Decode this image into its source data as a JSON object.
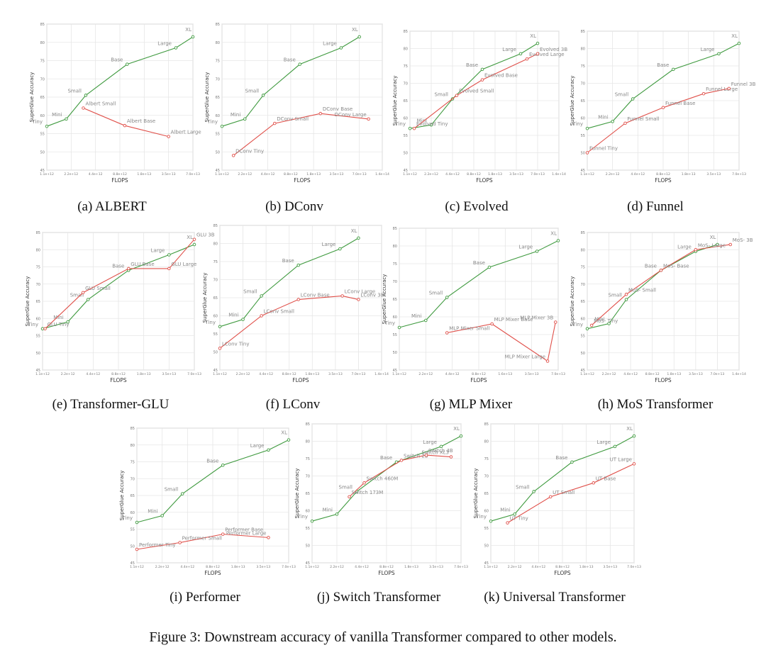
{
  "figure_caption": "Figure 3: Downstream accuracy of vanilla Transformer compared to other models.",
  "colors": {
    "baseline": "#3f9a3f",
    "compare": "#e0504a",
    "grid": "#e6e6e6",
    "axis": "#9a9a9a",
    "text": "#777777"
  },
  "chart_data": [
    {
      "type": "line",
      "caption": "(a) ALBERT",
      "xlabel": "FLOPS",
      "ylabel": "SuperGlue Accuracy",
      "ylim": [
        45,
        85
      ],
      "yticks": [
        "45",
        "50",
        "55",
        "60",
        "65",
        "70",
        "75",
        "80",
        "85"
      ],
      "xticks": [
        "1.1e+12",
        "2.2e+12",
        "4.4e+12",
        "8.8e+12",
        "1.8e+13",
        "3.5e+13",
        "7.0e+13"
      ],
      "series": [
        {
          "name": "Vanilla Transformer",
          "x": [
            0,
            0.8,
            1.6,
            3.3,
            5.3,
            6.0
          ],
          "y": [
            57.0,
            59.0,
            65.5,
            74.0,
            78.5,
            81.5
          ],
          "labels": [
            "Tiny",
            "Mini",
            "Small",
            "Base",
            "Large",
            "XL"
          ]
        },
        {
          "name": "ALBERT",
          "x": [
            1.5,
            3.2,
            5.0
          ],
          "y": [
            62.0,
            57.2,
            54.2
          ],
          "labels": [
            "Albert Small",
            "Albert Base",
            "Albert Large"
          ]
        }
      ]
    },
    {
      "type": "line",
      "caption": "(b) DConv",
      "xlabel": "FLOPS",
      "ylabel": "SuperGlue Accuracy",
      "ylim": [
        45,
        85
      ],
      "yticks": [
        "45",
        "50",
        "55",
        "60",
        "65",
        "70",
        "75",
        "80",
        "85"
      ],
      "xticks": [
        "1.1e+12",
        "2.2e+12",
        "4.4e+12",
        "8.8e+12",
        "1.8e+13",
        "3.5e+13",
        "7.0e+13",
        "1.4e+14"
      ],
      "series": [
        {
          "name": "Vanilla Transformer",
          "x": [
            0,
            1.0,
            1.8,
            3.4,
            5.2,
            6.0
          ],
          "y": [
            57.0,
            59.0,
            65.5,
            74.0,
            78.5,
            81.5
          ],
          "labels": [
            "Tiny",
            "Mini",
            "Small",
            "Base",
            "Large",
            "XL"
          ]
        },
        {
          "name": "DConv",
          "x": [
            0.5,
            2.3,
            4.3,
            6.4
          ],
          "y": [
            49.0,
            57.8,
            60.5,
            59.0
          ],
          "labels": [
            "DConv Tiny",
            "DConv Small",
            "DConv Base",
            "DConv Large"
          ]
        }
      ]
    },
    {
      "type": "line",
      "caption": "(c) Evolved",
      "xlabel": "FLOPS",
      "ylabel": "SuperGlue Accuracy",
      "ylim": [
        45,
        85
      ],
      "yticks": [
        "45",
        "50",
        "55",
        "60",
        "65",
        "70",
        "75",
        "80",
        "85"
      ],
      "xticks": [
        "1.1e+12",
        "2.2e+12",
        "4.4e+12",
        "8.8e+12",
        "1.8e+13",
        "3.5e+13",
        "7.0e+13",
        "1.4e+14"
      ],
      "series": [
        {
          "name": "Vanilla Transformer",
          "x": [
            0,
            1.0,
            2.0,
            3.4,
            5.2,
            6.0
          ],
          "y": [
            57.0,
            58.0,
            65.5,
            74.0,
            78.5,
            81.5
          ],
          "labels": [
            "Tiny",
            "Mini",
            "Small",
            "Base",
            "Large",
            "XL"
          ]
        },
        {
          "name": "Evolved",
          "x": [
            0.2,
            2.2,
            3.4,
            5.5,
            6.0
          ],
          "y": [
            57.0,
            66.5,
            71.0,
            77.0,
            78.5
          ],
          "labels": [
            "Evolved Tiny",
            "Evolved Small",
            "Evolved Base",
            "Evolved Large",
            "Evolved 3B"
          ]
        }
      ]
    },
    {
      "type": "line",
      "caption": "(d) Funnel",
      "xlabel": "FLOPS",
      "ylabel": "SuperGlue Accuracy",
      "ylim": [
        45,
        85
      ],
      "yticks": [
        "45",
        "50",
        "55",
        "60",
        "65",
        "70",
        "75",
        "80",
        "85"
      ],
      "xticks": [
        "1.1e+12",
        "2.2e+12",
        "4.4e+12",
        "8.8e+12",
        "1.8e+13",
        "3.5e+13",
        "7.0e+13"
      ],
      "series": [
        {
          "name": "Vanilla Transformer",
          "x": [
            0,
            1.0,
            1.8,
            3.4,
            5.2,
            6.0
          ],
          "y": [
            57.0,
            59.0,
            65.5,
            74.0,
            78.5,
            81.5
          ],
          "labels": [
            "Tiny",
            "Mini",
            "Small",
            "Base",
            "Large",
            "XL"
          ]
        },
        {
          "name": "Funnel",
          "x": [
            0,
            1.5,
            3.0,
            4.6,
            5.6
          ],
          "y": [
            50.0,
            58.5,
            63.0,
            67.0,
            68.5
          ],
          "labels": [
            "Funnel Tiny",
            "Funnel Small",
            "Funnel Base",
            "Funnel Large",
            "Funnel 3B"
          ]
        }
      ]
    },
    {
      "type": "line",
      "caption": "(e) Transformer-GLU",
      "xlabel": "FLOPS",
      "ylabel": "SuperGlue Accuracy",
      "ylim": [
        45,
        85
      ],
      "yticks": [
        "45",
        "50",
        "55",
        "60",
        "65",
        "70",
        "75",
        "80",
        "85"
      ],
      "xticks": [
        "1.1e+12",
        "2.2e+12",
        "4.4e+12",
        "8.8e+12",
        "1.8e+13",
        "3.5e+13",
        "7.0e+13"
      ],
      "series": [
        {
          "name": "Vanilla Transformer",
          "x": [
            0,
            1.0,
            1.8,
            3.4,
            5.0,
            6.0
          ],
          "y": [
            57.0,
            59.0,
            65.5,
            74.0,
            78.5,
            81.5
          ],
          "labels": [
            "Tiny",
            "Mini",
            "Small",
            "Base",
            "Large",
            "XL"
          ]
        },
        {
          "name": "Transformer-GLU",
          "x": [
            0.1,
            1.6,
            3.4,
            5.0,
            6.0
          ],
          "y": [
            57.0,
            67.5,
            74.5,
            74.5,
            83.0
          ],
          "labels": [
            "GLU Tiny",
            "GLU Small",
            "GLU Base",
            "GLU Large",
            "GLU 3B"
          ]
        }
      ]
    },
    {
      "type": "line",
      "caption": "(f) LConv",
      "xlabel": "FLOPS",
      "ylabel": "SuperGlue Accuracy",
      "ylim": [
        45,
        85
      ],
      "yticks": [
        "45",
        "50",
        "55",
        "60",
        "65",
        "70",
        "75",
        "80",
        "85"
      ],
      "xticks": [
        "1.1e+12",
        "2.2e+12",
        "4.4e+12",
        "8.8e+12",
        "1.8e+13",
        "3.5e+13",
        "7.0e+13",
        "1.4e+14"
      ],
      "series": [
        {
          "name": "Vanilla Transformer",
          "x": [
            0,
            1.0,
            1.8,
            3.4,
            5.2,
            6.0
          ],
          "y": [
            57.0,
            59.0,
            65.5,
            74.0,
            78.5,
            81.5
          ],
          "labels": [
            "Tiny",
            "Mini",
            "Small",
            "Base",
            "Large",
            "XL"
          ]
        },
        {
          "name": "LConv",
          "x": [
            0,
            1.8,
            3.4,
            5.3,
            6.0
          ],
          "y": [
            51.0,
            60.0,
            64.5,
            65.5,
            64.5
          ],
          "labels": [
            "LConv Tiny",
            "LConv Small",
            "LConv Base",
            "LConv Large",
            "LConv 3B"
          ]
        }
      ]
    },
    {
      "type": "line",
      "caption": "(g) MLP Mixer",
      "xlabel": "FLOPS",
      "ylabel": "SuperGlue Accuracy",
      "ylim": [
        45,
        85
      ],
      "yticks": [
        "45",
        "50",
        "55",
        "60",
        "65",
        "70",
        "75",
        "80",
        "85"
      ],
      "xticks": [
        "1.1e+12",
        "2.2e+12",
        "4.4e+12",
        "8.8e+12",
        "1.6e+13",
        "3.5e+13",
        "7.0e+13"
      ],
      "series": [
        {
          "name": "Vanilla Transformer",
          "x": [
            0,
            1.0,
            1.8,
            3.4,
            5.2,
            6.0
          ],
          "y": [
            57.0,
            59.0,
            65.5,
            74.0,
            78.5,
            81.5
          ],
          "labels": [
            "Tiny",
            "Mini",
            "Small",
            "Base",
            "Large",
            "XL"
          ]
        },
        {
          "name": "MLP Mixer",
          "x": [
            1.8,
            3.5,
            5.6,
            5.9
          ],
          "y": [
            55.5,
            58.0,
            47.5,
            58.5
          ],
          "labels": [
            "MLP Mixer Small",
            "MLP Mixer Base",
            "MLP Mixer Large",
            "MLP Mixer 3B"
          ]
        }
      ]
    },
    {
      "type": "line",
      "caption": "(h) MoS Transformer",
      "xlabel": "FLOPS",
      "ylabel": "SuperGlue Accuracy",
      "ylim": [
        45,
        85
      ],
      "yticks": [
        "45",
        "50",
        "55",
        "60",
        "65",
        "70",
        "75",
        "80",
        "85"
      ],
      "xticks": [
        "1.1e+12",
        "2.2e+12",
        "4.4e+12",
        "8.8e+12",
        "1.8e+13",
        "3.5e+13",
        "7.0e+13",
        "1.4e+14"
      ],
      "series": [
        {
          "name": "Vanilla Transformer",
          "x": [
            0,
            1.0,
            1.8,
            3.4,
            5.0,
            6.0
          ],
          "y": [
            57.0,
            58.5,
            65.5,
            74.0,
            79.5,
            81.5
          ],
          "labels": [
            "Tiny",
            "Mini",
            "Small",
            "Base",
            "Large",
            "XL"
          ]
        },
        {
          "name": "MoS Transformer",
          "x": [
            0.2,
            1.8,
            3.4,
            5.0,
            6.6
          ],
          "y": [
            58.0,
            67.0,
            74.0,
            80.0,
            81.5
          ],
          "labels": [
            "MoS- Tiny",
            "MoS- Small",
            "MoS- Base",
            "MoS- Large",
            "MoS- 3B"
          ]
        }
      ]
    },
    {
      "type": "line",
      "caption": "(i) Performer",
      "xlabel": "FLOPS",
      "ylabel": "SuperGlue Accuracy",
      "ylim": [
        45,
        85
      ],
      "yticks": [
        "45",
        "50",
        "55",
        "60",
        "65",
        "70",
        "75",
        "80",
        "85"
      ],
      "xticks": [
        "1.1e+12",
        "2.2e+12",
        "4.4e+12",
        "8.8e+12",
        "1.8e+13",
        "3.5e+13",
        "7.0e+13"
      ],
      "series": [
        {
          "name": "Vanilla Transformer",
          "x": [
            0,
            1.0,
            1.8,
            3.4,
            5.2,
            6.0
          ],
          "y": [
            57.0,
            59.0,
            65.5,
            74.0,
            78.5,
            81.5
          ],
          "labels": [
            "Tiny",
            "Mini",
            "Small",
            "Base",
            "Large",
            "XL"
          ]
        },
        {
          "name": "Performer",
          "x": [
            0,
            1.7,
            3.4,
            5.2
          ],
          "y": [
            49.0,
            51.0,
            53.5,
            52.5
          ],
          "labels": [
            "Performer Tiny",
            "Performer Small",
            "Performer Base",
            "Performer Large"
          ]
        }
      ]
    },
    {
      "type": "line",
      "caption": "(j) Switch Transformer",
      "xlabel": "FLOPS",
      "ylabel": "SuperGlue Accuracy",
      "ylim": [
        45,
        85
      ],
      "yticks": [
        "45",
        "50",
        "55",
        "60",
        "65",
        "70",
        "75",
        "80",
        "85"
      ],
      "xticks": [
        "1.1e+12",
        "2.2e+12",
        "4.4e+12",
        "8.8e+12",
        "1.8e+13",
        "3.5e+13",
        "7.0e+13"
      ],
      "series": [
        {
          "name": "Vanilla Transformer",
          "x": [
            0,
            1.0,
            1.8,
            3.4,
            5.2,
            6.0
          ],
          "y": [
            57.0,
            59.0,
            65.5,
            74.0,
            78.5,
            81.5
          ],
          "labels": [
            "Tiny",
            "Mini",
            "Small",
            "Base",
            "Large",
            "XL"
          ]
        },
        {
          "name": "Switch Transformer",
          "x": [
            1.5,
            2.1,
            3.6,
            4.6,
            5.6
          ],
          "y": [
            64.0,
            68.0,
            74.5,
            76.0,
            75.5
          ],
          "labels": [
            "Switch 173M",
            "Switch 460M",
            "Switch 2B",
            "Switch 4B",
            "Switch XL3"
          ]
        }
      ]
    },
    {
      "type": "line",
      "caption": "(k) Universal Transformer",
      "xlabel": "FLOPS",
      "ylabel": "SuperGlue Accuracy",
      "ylim": [
        45,
        85
      ],
      "yticks": [
        "45",
        "50",
        "55",
        "60",
        "65",
        "70",
        "75",
        "80",
        "85"
      ],
      "xticks": [
        "1.1e+12",
        "2.2e+12",
        "4.4e+12",
        "8.8e+12",
        "1.8e+13",
        "3.5e+13",
        "7.0e+13"
      ],
      "series": [
        {
          "name": "Vanilla Transformer",
          "x": [
            0,
            1.0,
            1.8,
            3.4,
            5.2,
            6.0
          ],
          "y": [
            57.0,
            59.0,
            65.5,
            74.0,
            78.5,
            81.5
          ],
          "labels": [
            "Tiny",
            "Mini",
            "Small",
            "Base",
            "Large",
            "XL"
          ]
        },
        {
          "name": "Universal Transformer",
          "x": [
            0.7,
            2.5,
            4.3,
            6.0
          ],
          "y": [
            56.5,
            64.0,
            68.0,
            73.5
          ],
          "labels": [
            "UT Tiny",
            "UT Small",
            "UT Base",
            "UT Large"
          ]
        }
      ]
    }
  ]
}
